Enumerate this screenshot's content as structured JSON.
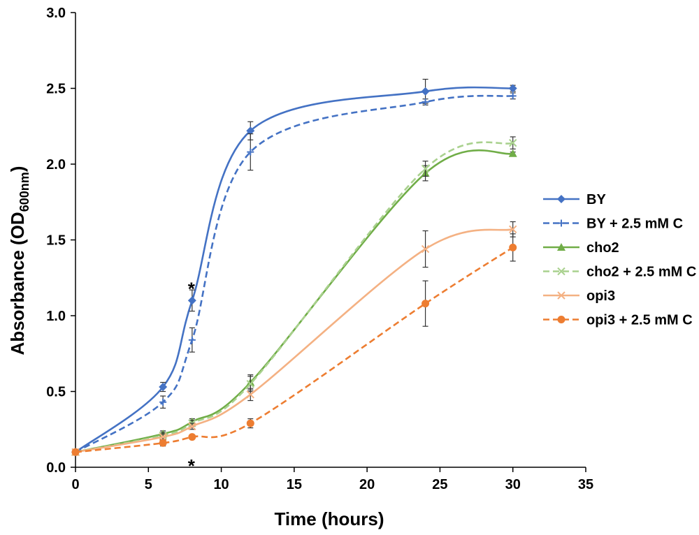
{
  "chart_data": {
    "type": "line",
    "title": "",
    "xlabel": "Time (hours)",
    "ylabel": {
      "main": "Absorbance (OD",
      "sub": "600nm",
      "close": ")"
    },
    "xlim": [
      0,
      35
    ],
    "ylim": [
      0,
      3.0
    ],
    "xticks": [
      0,
      5,
      10,
      15,
      20,
      25,
      30,
      35
    ],
    "yticks": [
      "0.0",
      "0.5",
      "1.0",
      "1.5",
      "2.0",
      "2.5",
      "3.0"
    ],
    "grid": false,
    "legend_position": "right",
    "x": [
      0,
      6,
      8,
      12,
      24,
      30
    ],
    "series": [
      {
        "name": "BY",
        "color": "#4472C4",
        "dash": false,
        "marker": "diamond",
        "values": [
          0.1,
          0.53,
          1.1,
          2.22,
          2.48,
          2.5
        ],
        "errors": [
          0.01,
          0.03,
          0.07,
          0.06,
          0.08,
          0.02
        ]
      },
      {
        "name": "BY + 2.5 mM C",
        "color": "#4472C4",
        "dash": true,
        "marker": "cross",
        "values": [
          0.1,
          0.43,
          0.84,
          2.08,
          2.41,
          2.45
        ],
        "errors": [
          0.01,
          0.04,
          0.08,
          0.12,
          0.02,
          0.02
        ]
      },
      {
        "name": "cho2",
        "color": "#70AD47",
        "dash": false,
        "marker": "triangle",
        "values": [
          0.1,
          0.22,
          0.3,
          0.56,
          1.94,
          2.07
        ],
        "errors": [
          0.01,
          0.02,
          0.02,
          0.05,
          0.05,
          0.01
        ]
      },
      {
        "name": "cho2 + 2.5 mM C",
        "color": "#A9D18E",
        "dash": true,
        "marker": "x",
        "values": [
          0.1,
          0.21,
          0.29,
          0.55,
          1.97,
          2.14
        ],
        "errors": [
          0.01,
          0.02,
          0.02,
          0.05,
          0.05,
          0.04
        ]
      },
      {
        "name": "opi3",
        "color": "#F4B183",
        "dash": false,
        "marker": "x",
        "values": [
          0.1,
          0.2,
          0.27,
          0.48,
          1.44,
          1.57
        ],
        "errors": [
          0.01,
          0.02,
          0.02,
          0.04,
          0.12,
          0.05
        ]
      },
      {
        "name": "opi3 + 2.5 mM C",
        "color": "#ED7D31",
        "dash": true,
        "marker": "circle",
        "values": [
          0.1,
          0.16,
          0.2,
          0.29,
          1.08,
          1.45
        ],
        "errors": [
          0.01,
          0.02,
          0.01,
          0.03,
          0.15,
          0.09
        ]
      }
    ],
    "annotations": [
      {
        "text": "*",
        "x": 8,
        "y": 1.22
      },
      {
        "text": "*",
        "x": 8,
        "y": 0.05
      }
    ]
  }
}
